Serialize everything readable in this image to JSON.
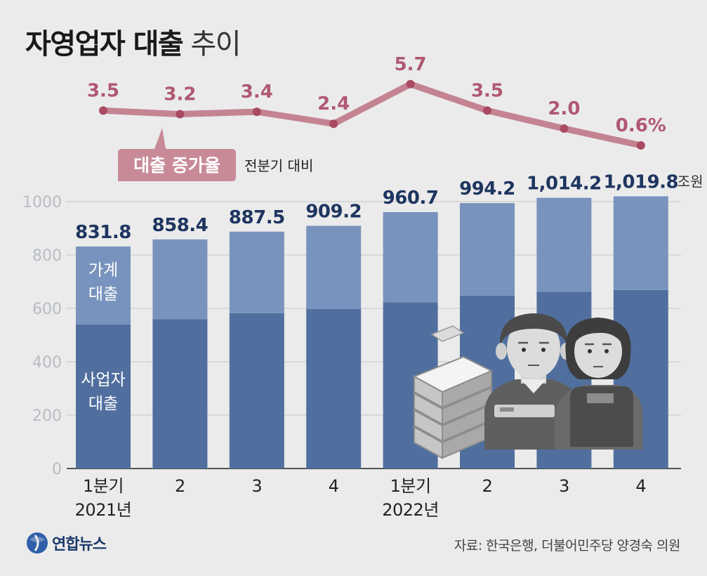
{
  "title": {
    "bold": "자영업자 대출",
    "light": "추이"
  },
  "growth_badge": {
    "label": "대출 증가율",
    "note": "전분기 대비"
  },
  "bar_legend": {
    "household": [
      "가계",
      "대출"
    ],
    "business": [
      "사업자",
      "대출"
    ]
  },
  "source": "자료: 한국은행, 더불어민주당 양경숙 의원",
  "logo": {
    "text": "연합뉴스"
  },
  "colors": {
    "background": "#ebebeb",
    "household": "#7893bd",
    "business": "#506f9e",
    "growth_line": "#c48393",
    "growth_point": "#a94a62",
    "growth_label": "#b05872",
    "badge": "#c98a98",
    "total_label": "#1e3560",
    "axis_tick": "#b8bcc4"
  },
  "chart_data": [
    {
      "type": "line",
      "title": "대출 증가율",
      "subtitle": "전분기 대비",
      "x": [
        "1분기 2021년",
        "2",
        "3",
        "4",
        "1분기 2022년",
        "2",
        "3",
        "4"
      ],
      "values": [
        3.5,
        3.2,
        3.4,
        2.4,
        5.7,
        3.5,
        2.0,
        0.6
      ],
      "value_labels": [
        "3.5",
        "3.2",
        "3.4",
        "2.4",
        "5.7",
        "3.5",
        "2.0",
        "0.6%"
      ],
      "unit": "%"
    },
    {
      "type": "bar",
      "stacked": true,
      "categories": [
        [
          "1분기",
          "2021년"
        ],
        [
          "2"
        ],
        [
          "3"
        ],
        [
          "4"
        ],
        [
          "1분기",
          "2022년"
        ],
        [
          "2"
        ],
        [
          "3"
        ],
        [
          "4"
        ]
      ],
      "series": [
        {
          "name": "사업자 대출",
          "values": [
            540,
            560,
            582,
            598,
            623,
            648,
            662,
            669
          ]
        },
        {
          "name": "가계 대출",
          "values": [
            291.8,
            298.4,
            305.5,
            311.2,
            337.7,
            346.2,
            352.2,
            350.8
          ]
        }
      ],
      "totals": [
        831.8,
        858.4,
        887.5,
        909.2,
        960.7,
        994.2,
        1014.2,
        1019.8
      ],
      "total_labels": [
        "831.8",
        "858.4",
        "887.5",
        "909.2",
        "960.7",
        "994.2",
        "1,014.2",
        "1,019.8"
      ],
      "unit": "조원",
      "yticks": [
        0,
        200,
        400,
        600,
        800,
        1000
      ],
      "ylim": [
        0,
        1000
      ],
      "grid": true
    }
  ]
}
